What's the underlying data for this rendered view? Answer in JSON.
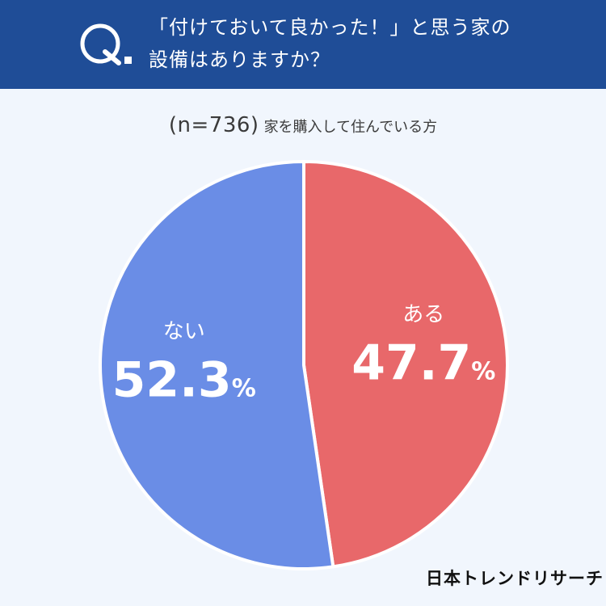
{
  "question": {
    "mark": "Q.",
    "line1": "「付けておいて良かった！」と思う家の",
    "line2": "設備はありますか？"
  },
  "sample": {
    "n": "(n=736)",
    "description": "家を購入して住んでいる方"
  },
  "chart_data": {
    "type": "pie",
    "title": "「付けておいて良かった！」と思う家の設備はありますか？",
    "subtitle": "(n=736) 家を購入して住んでいる方",
    "slices": [
      {
        "label": "ある",
        "value": 47.7,
        "display": "47.7%",
        "color": "#e8686a"
      },
      {
        "label": "ない",
        "value": 52.3,
        "display": "52.3%",
        "color": "#6a8de6"
      }
    ],
    "unit": "%",
    "start": "12 o'clock",
    "direction": "clockwise"
  },
  "brand": "日本トレンドリサーチ",
  "colors": {
    "header": "#1f4d97",
    "background": "#f1f6fd",
    "yes": "#e8686a",
    "no": "#6a8de6"
  }
}
